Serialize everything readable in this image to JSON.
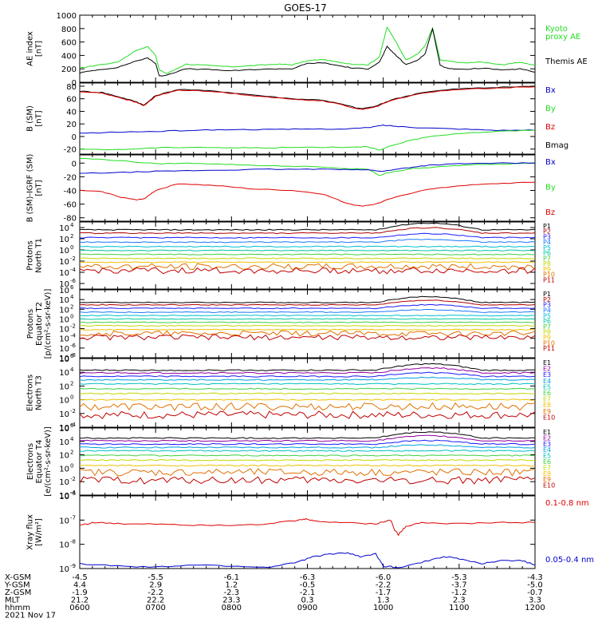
{
  "title": "GOES-17",
  "colors": {
    "black": "#000000",
    "red": "#e00000",
    "green": "#22dd22",
    "blue": "#0000cc",
    "p_series": [
      "#000000",
      "#b00000",
      "#1a1aff",
      "#1a78ff",
      "#00bfd0",
      "#00c8a0",
      "#40d040",
      "#c0d800",
      "#f0c000",
      "#e07000",
      "#c00000"
    ],
    "e_series": [
      "#000000",
      "#9000a0",
      "#1a1aff",
      "#00a0e0",
      "#00c0c0",
      "#40d040",
      "#c0d800",
      "#f0c000",
      "#e07000",
      "#c00000"
    ]
  },
  "chart_data": [
    {
      "id": "ae",
      "type": "line",
      "ylabel": [
        "AE index",
        "[nT]"
      ],
      "ylim": [
        0,
        1000
      ],
      "yticks": [
        "0",
        "200",
        "400",
        "600",
        "800",
        "1000"
      ],
      "ytick_values": [
        0,
        200,
        400,
        600,
        800,
        1000
      ],
      "legend": [
        {
          "label": "Kyoto",
          "color": "green"
        },
        {
          "label": "proxy AE",
          "color": "green"
        },
        {
          "label": "Themis AE",
          "color": "black"
        }
      ],
      "series": [
        {
          "color": "green",
          "x": [
            6.0,
            6.2,
            6.5,
            6.75,
            6.9,
            7.0,
            7.05,
            7.15,
            7.4,
            7.7,
            8.0,
            8.3,
            8.6,
            8.8,
            9.0,
            9.2,
            9.4,
            9.6,
            9.8,
            9.95,
            10.05,
            10.15,
            10.3,
            10.45,
            10.55,
            10.65,
            10.75,
            10.85,
            11.0,
            11.3,
            11.6,
            11.8,
            12.0
          ],
          "y": [
            210,
            250,
            300,
            480,
            530,
            400,
            180,
            130,
            270,
            250,
            230,
            250,
            270,
            260,
            320,
            340,
            300,
            270,
            260,
            380,
            820,
            640,
            330,
            420,
            540,
            810,
            330,
            320,
            290,
            300,
            260,
            300,
            250
          ]
        },
        {
          "color": "black",
          "x": [
            6.0,
            6.2,
            6.5,
            6.75,
            6.9,
            7.0,
            7.05,
            7.15,
            7.4,
            7.7,
            8.0,
            8.3,
            8.6,
            8.8,
            9.0,
            9.2,
            9.4,
            9.6,
            9.8,
            9.95,
            10.05,
            10.15,
            10.3,
            10.45,
            10.55,
            10.65,
            10.75,
            10.85,
            11.0,
            11.3,
            11.6,
            11.8,
            12.0
          ],
          "y": [
            140,
            180,
            220,
            320,
            360,
            280,
            90,
            110,
            200,
            190,
            170,
            190,
            200,
            200,
            280,
            290,
            250,
            210,
            200,
            300,
            530,
            420,
            260,
            330,
            420,
            800,
            250,
            210,
            190,
            210,
            180,
            200,
            150
          ]
        }
      ]
    },
    {
      "id": "bsm",
      "type": "line",
      "ylabel": [
        "B (SM)",
        "[nT]"
      ],
      "ylim": [
        -28,
        85
      ],
      "yticks": [
        "-20",
        "0",
        "20",
        "40",
        "60",
        "80"
      ],
      "ytick_values": [
        -20,
        0,
        20,
        40,
        60,
        80
      ],
      "legend": [
        {
          "label": "Bx",
          "color": "blue"
        },
        {
          "label": "By",
          "color": "green"
        },
        {
          "label": "Bz",
          "color": "red"
        },
        {
          "label": "Bmag",
          "color": "black"
        }
      ],
      "series": [
        {
          "color": "black",
          "x": [
            6.0,
            6.3,
            6.55,
            6.75,
            6.85,
            7.0,
            7.3,
            7.8,
            8.3,
            8.8,
            9.2,
            9.5,
            9.7,
            9.9,
            10.1,
            10.5,
            11.0,
            11.5,
            12.0
          ],
          "y": [
            72,
            70,
            62,
            55,
            50,
            65,
            75,
            72,
            66,
            60,
            58,
            50,
            44,
            48,
            58,
            70,
            76,
            78,
            80
          ]
        },
        {
          "color": "red",
          "x": [
            6.0,
            6.3,
            6.55,
            6.75,
            6.85,
            7.0,
            7.3,
            7.8,
            8.3,
            8.8,
            9.2,
            9.5,
            9.7,
            9.9,
            10.1,
            10.5,
            11.0,
            11.5,
            12.0
          ],
          "y": [
            71,
            69,
            61,
            54,
            49,
            64,
            74,
            71,
            65,
            59,
            57,
            49,
            43,
            47,
            57,
            69,
            75,
            77,
            79
          ]
        },
        {
          "color": "blue",
          "x": [
            6.0,
            6.5,
            7.0,
            7.5,
            8.0,
            8.5,
            9.0,
            9.5,
            9.8,
            10.0,
            10.2,
            10.5,
            11.0,
            11.5,
            12.0
          ],
          "y": [
            5,
            7,
            8,
            10,
            11,
            11,
            12,
            12,
            14,
            18,
            16,
            14,
            12,
            10,
            10
          ]
        },
        {
          "color": "green",
          "x": [
            6.0,
            6.5,
            7.0,
            7.5,
            8.0,
            8.5,
            9.0,
            9.5,
            9.8,
            9.95,
            10.1,
            10.3,
            10.6,
            11.0,
            11.5,
            12.0
          ],
          "y": [
            -20,
            -21,
            -18,
            -17,
            -18,
            -18,
            -17,
            -17,
            -16,
            -22,
            -15,
            -8,
            0,
            5,
            8,
            10
          ]
        }
      ]
    },
    {
      "id": "bsmigrf",
      "type": "line",
      "ylabel": [
        "B (SM)-IGRF (SM)",
        "[nT]"
      ],
      "ylim": [
        -85,
        12
      ],
      "yticks": [
        "-80",
        "-60",
        "-40",
        "-20",
        "0"
      ],
      "ytick_values": [
        -80,
        -60,
        -40,
        -20,
        0
      ],
      "legend": [
        {
          "label": "Bx",
          "color": "blue"
        },
        {
          "label": "By",
          "color": "green"
        },
        {
          "label": "Bz",
          "color": "red"
        }
      ],
      "series": [
        {
          "color": "green",
          "x": [
            6.0,
            6.5,
            7.0,
            7.5,
            8.0,
            8.5,
            9.0,
            9.5,
            9.8,
            9.95,
            10.1,
            10.4,
            10.8,
            11.2,
            11.6,
            12.0
          ],
          "y": [
            7,
            4,
            -1,
            0,
            -2,
            -4,
            -5,
            -8,
            -9,
            -18,
            -13,
            -8,
            -5,
            -2,
            -1,
            0
          ]
        },
        {
          "color": "blue",
          "x": [
            6.0,
            6.5,
            7.0,
            7.5,
            8.0,
            8.5,
            9.0,
            9.5,
            9.8,
            10.0,
            10.3,
            10.6,
            11.0,
            11.5,
            12.0
          ],
          "y": [
            -15,
            -14,
            -12,
            -11,
            -10,
            -9,
            -9,
            -9,
            -10,
            -12,
            -7,
            -3,
            -1,
            0,
            0
          ]
        },
        {
          "color": "red",
          "x": [
            6.0,
            6.3,
            6.55,
            6.75,
            6.85,
            7.0,
            7.3,
            7.8,
            8.3,
            8.8,
            9.2,
            9.5,
            9.7,
            9.9,
            10.1,
            10.5,
            11.0,
            11.5,
            12.0
          ],
          "y": [
            -40,
            -42,
            -50,
            -54,
            -52,
            -40,
            -30,
            -33,
            -38,
            -40,
            -45,
            -58,
            -63,
            -60,
            -52,
            -40,
            -33,
            -30,
            -28
          ]
        }
      ]
    },
    {
      "id": "pn",
      "type": "line",
      "log": true,
      "ylabel": [
        "Protons",
        "North T1"
      ],
      "ylim": [
        -7,
        5
      ],
      "yticks": [
        "10",
        "10",
        "10",
        "10",
        "10",
        "10"
      ],
      "ytick_exps": [
        "4",
        "2",
        "0",
        "-2",
        "-4",
        "-6"
      ],
      "ytick_values": [
        4,
        2,
        0,
        -2,
        -4,
        -6
      ],
      "legend_key": "p",
      "legend": [
        "P1",
        "P2",
        "P3",
        "P4",
        "P5",
        "P6",
        "P7",
        "P8",
        "P9",
        "P10",
        "P11"
      ],
      "levels": [
        3.6,
        3.0,
        2.2,
        1.4,
        0.6,
        -0.1,
        -0.8,
        -1.5,
        -2.2,
        -3.0,
        -3.7
      ]
    },
    {
      "id": "pe",
      "type": "line",
      "log": true,
      "ylabel": [
        "Protons",
        "Equator T2",
        "[p/(cm²-s-sr-keV)]"
      ],
      "ylim": [
        -8,
        6
      ],
      "yticks": [
        "10",
        "10",
        "10",
        "10",
        "10",
        "10",
        "10",
        "10"
      ],
      "ytick_exps": [
        "6",
        "4",
        "2",
        "0",
        "-2",
        "-4",
        "-6",
        "-8"
      ],
      "ytick_values": [
        6,
        4,
        2,
        0,
        -2,
        -4,
        -6,
        -8
      ],
      "legend_key": "p",
      "legend": [
        "P1",
        "P2",
        "P3",
        "P4",
        "P5",
        "P6",
        "P7",
        "P8",
        "P9",
        "P10",
        "P11"
      ],
      "levels": [
        3.4,
        2.9,
        2.2,
        1.4,
        0.7,
        0.0,
        -0.7,
        -1.4,
        -2.2,
        -3.0,
        -3.8
      ]
    },
    {
      "id": "en",
      "type": "line",
      "log": true,
      "ylabel": [
        "Electrons",
        "North T3"
      ],
      "ylim": [
        -4,
        6
      ],
      "yticks": [
        "10",
        "10",
        "10",
        "10",
        "10",
        "10"
      ],
      "ytick_exps": [
        "6",
        "4",
        "2",
        "0",
        "-2",
        "-4"
      ],
      "ytick_values": [
        6,
        4,
        2,
        0,
        -2,
        -4
      ],
      "legend_key": "e",
      "legend": [
        "E1",
        "E2",
        "E3",
        "E4",
        "E5",
        "E6",
        "E7",
        "E8",
        "E9",
        "E10"
      ],
      "levels": [
        4.3,
        3.9,
        3.4,
        2.9,
        2.3,
        1.6,
        0.9,
        0.0,
        -1.0,
        -2.2
      ]
    },
    {
      "id": "ee",
      "type": "line",
      "log": true,
      "ylabel": [
        "Electrons",
        "Equator T4",
        "[e/(cm²-s-sr-keV)]"
      ],
      "ylim": [
        -4,
        6
      ],
      "yticks": [
        "10",
        "10",
        "10",
        "10",
        "10",
        "10"
      ],
      "ytick_exps": [
        "6",
        "4",
        "2",
        "0",
        "-2",
        "-4"
      ],
      "ytick_values": [
        6,
        4,
        2,
        0,
        -2,
        -4
      ],
      "legend_key": "e",
      "legend": [
        "E1",
        "E2",
        "E3",
        "E4",
        "E5",
        "E6",
        "E7",
        "E8",
        "E9",
        "E10"
      ],
      "levels": [
        4.5,
        4.1,
        3.6,
        3.1,
        2.6,
        1.9,
        1.2,
        0.4,
        -0.6,
        -1.8
      ]
    },
    {
      "id": "xray",
      "type": "line",
      "log": true,
      "ylabel": [
        "Xray flux",
        "[W/m²]"
      ],
      "ylim": [
        -9,
        -6
      ],
      "yticks": [
        "10",
        "10",
        "10",
        "10"
      ],
      "ytick_exps": [
        "-6",
        "-7",
        "-8",
        "-9"
      ],
      "ytick_values": [
        -6,
        -7,
        -8,
        -9
      ],
      "legend": [
        {
          "label": "0.1-0.8 nm",
          "color": "red"
        },
        {
          "label": "0.05-0.4 nm",
          "color": "blue"
        }
      ],
      "series": [
        {
          "color": "red",
          "x": [
            6.0,
            6.2,
            6.5,
            7.0,
            7.5,
            8.0,
            8.5,
            8.9,
            9.0,
            9.1,
            9.5,
            9.9,
            10.1,
            10.15,
            10.2,
            10.3,
            10.5,
            11.0,
            11.5,
            12.0
          ],
          "y": [
            -7.2,
            -7.1,
            -7.15,
            -7.15,
            -7.2,
            -7.2,
            -7.15,
            -7.0,
            -6.95,
            -7.05,
            -7.1,
            -7.15,
            -7.0,
            -7.4,
            -7.6,
            -7.25,
            -7.1,
            -7.15,
            -7.1,
            -7.1
          ]
        },
        {
          "color": "blue",
          "x": [
            6.0,
            6.5,
            7.0,
            7.5,
            8.0,
            8.5,
            8.9,
            9.1,
            9.3,
            9.5,
            9.7,
            9.9,
            10.0,
            10.2,
            10.5,
            10.8,
            11.0,
            11.3,
            11.5,
            11.8,
            12.0
          ],
          "y": [
            -8.8,
            -8.9,
            -8.95,
            -8.85,
            -8.9,
            -8.95,
            -8.7,
            -8.5,
            -8.4,
            -8.35,
            -8.5,
            -8.4,
            -8.9,
            -8.95,
            -8.75,
            -8.5,
            -8.6,
            -8.8,
            -8.7,
            -8.65,
            -8.85
          ]
        }
      ]
    }
  ],
  "x_axis": {
    "xlim": [
      6,
      12
    ],
    "tick_values": [
      6,
      7,
      8,
      9,
      10,
      11,
      12
    ],
    "rows": [
      {
        "label": "X-GSM",
        "values": [
          "-4.5",
          "-5.5",
          "-6.1",
          "-6.3",
          "-6.0",
          "-5.3",
          "-4.3"
        ]
      },
      {
        "label": "Y-GSM",
        "values": [
          "4.4",
          "2.9",
          "1.2",
          "-0.5",
          "-2.2",
          "-3.7",
          "-5.0"
        ]
      },
      {
        "label": "Z-GSM",
        "values": [
          "-1.9",
          "-2.2",
          "-2.3",
          "-2.1",
          "-1.7",
          "-1.2",
          "-0.7"
        ]
      },
      {
        "label": "MLT",
        "values": [
          "21.2",
          "22.2",
          "23.3",
          "0.3",
          "1.3",
          "2.3",
          "3.3"
        ]
      },
      {
        "label": "hhmm",
        "values": [
          "0600",
          "0700",
          "0800",
          "0900",
          "1000",
          "1100",
          "1200"
        ]
      }
    ],
    "date": "2021 Nov 17"
  }
}
